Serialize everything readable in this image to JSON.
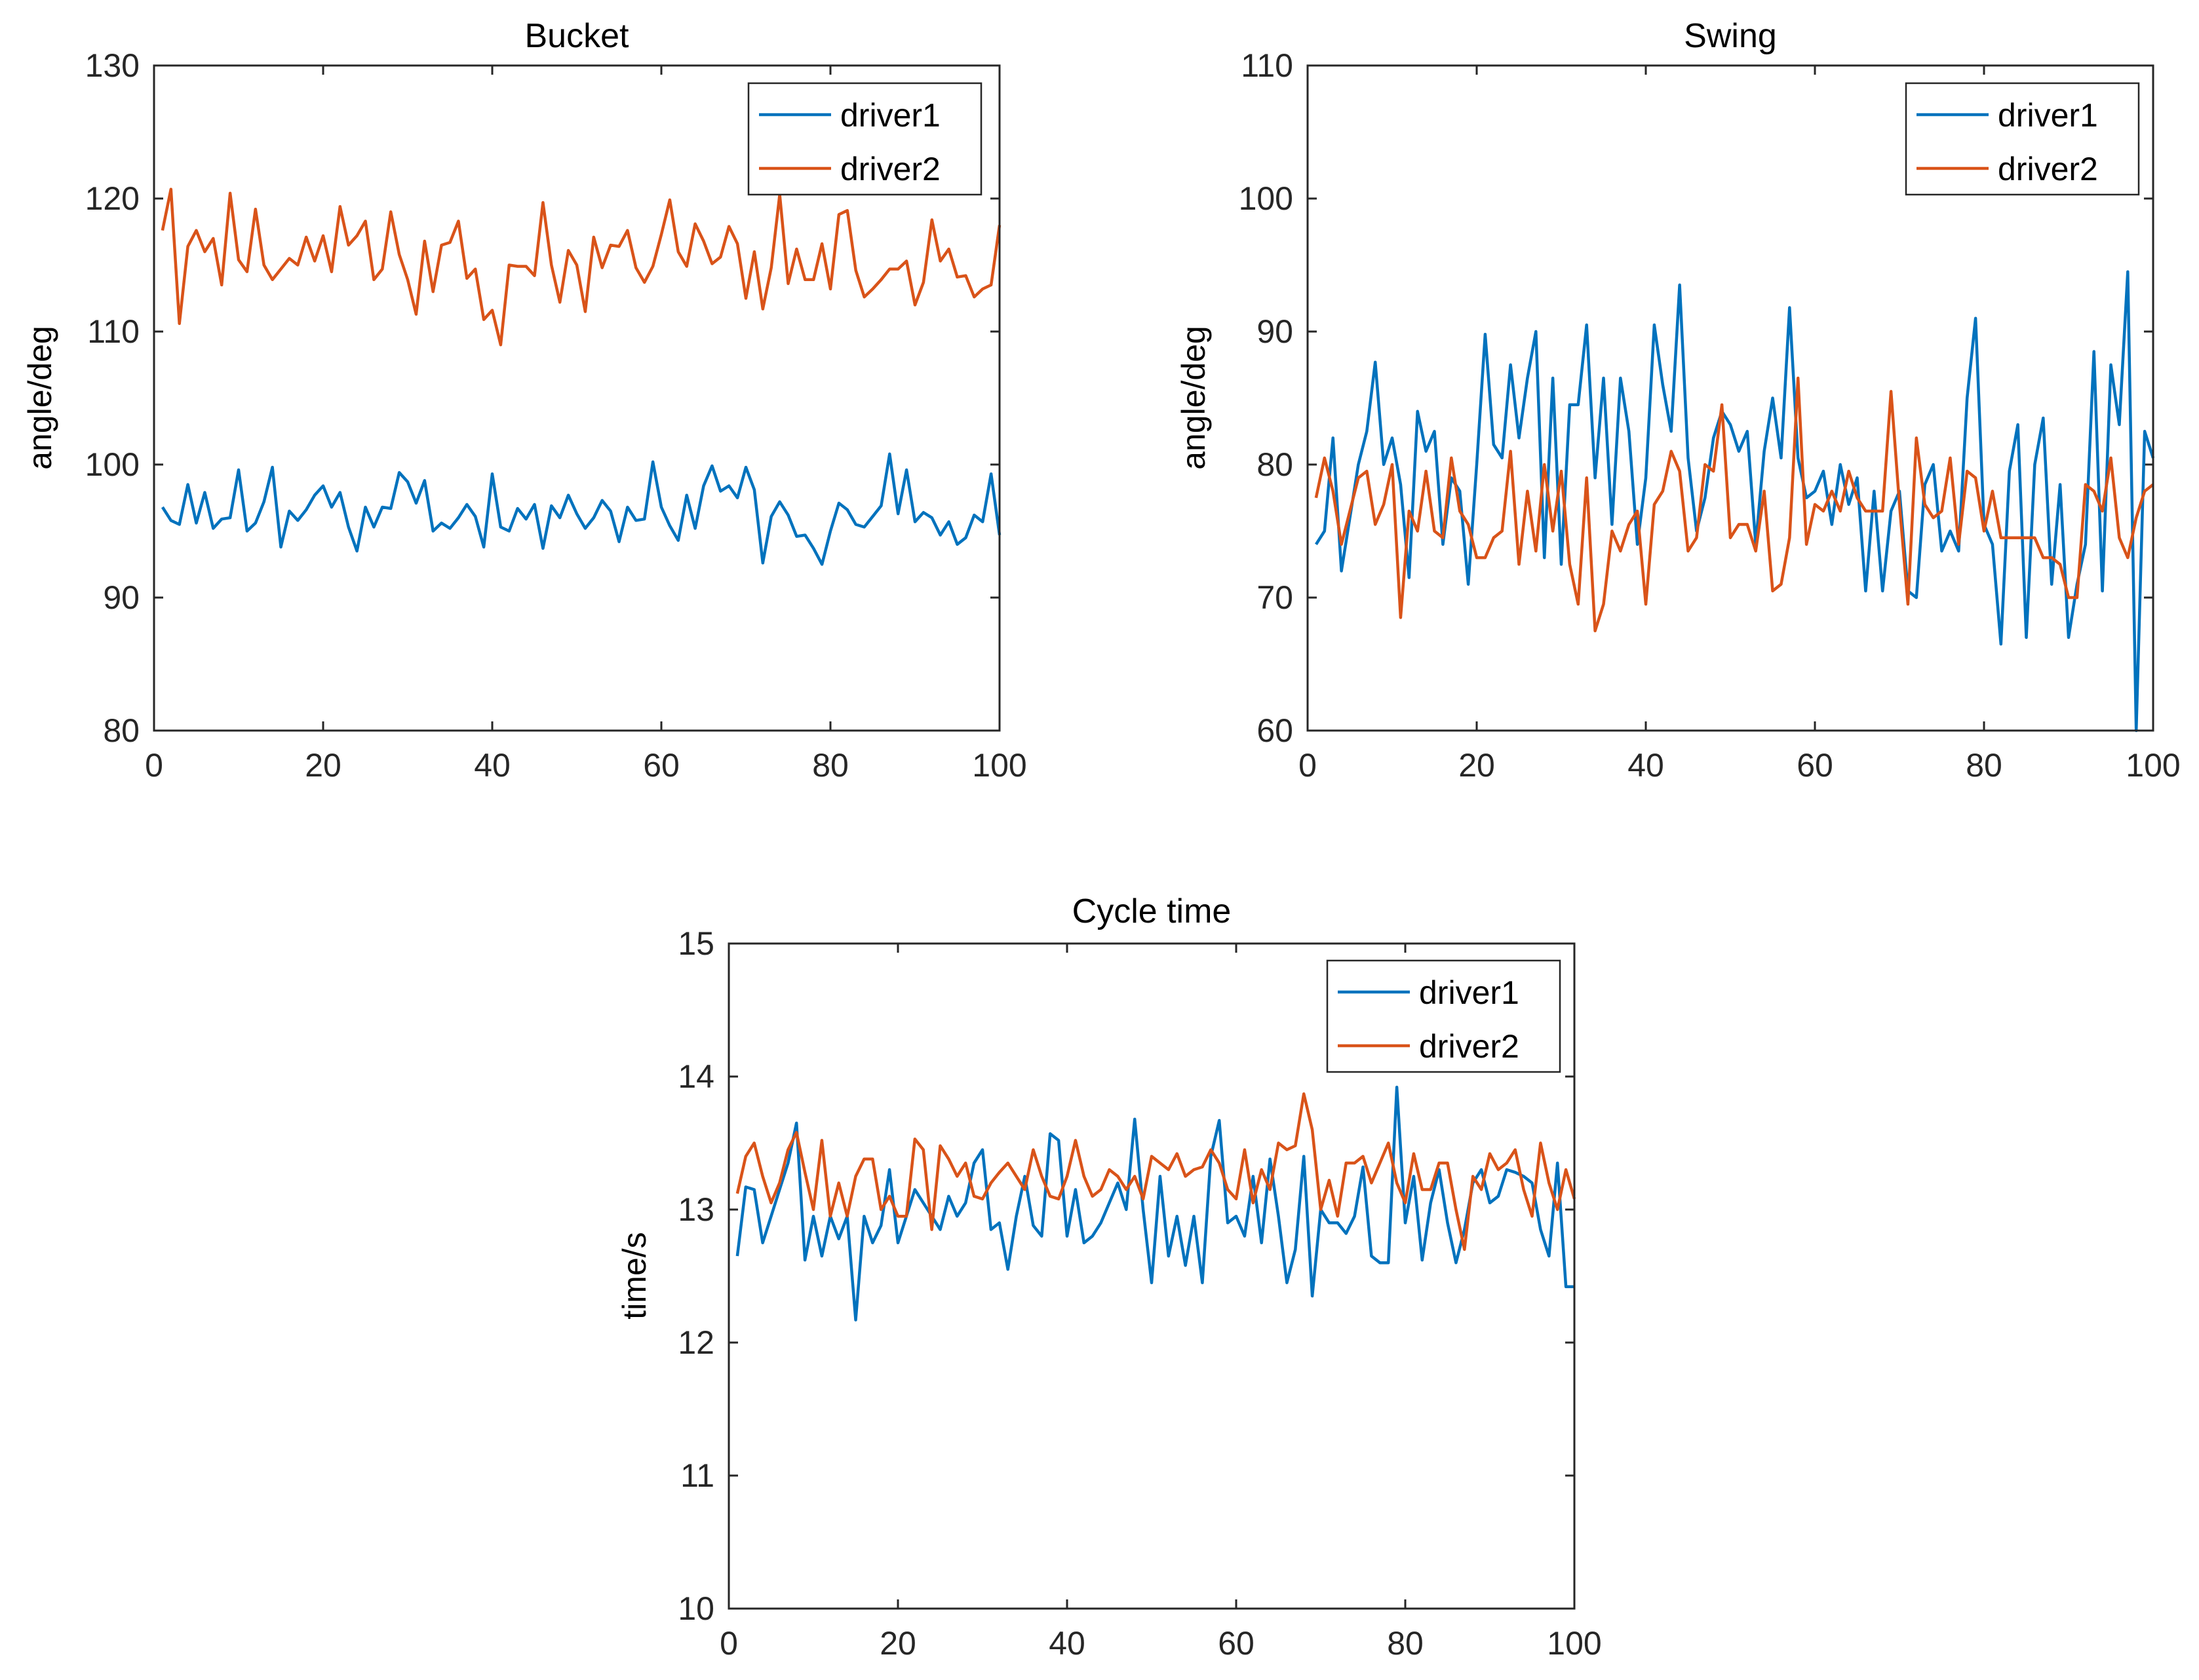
{
  "chart_data": [
    {
      "type": "line",
      "title": "Bucket",
      "xlabel": "",
      "ylabel": "angle/deg",
      "xlim": [
        0,
        100
      ],
      "ylim": [
        80,
        130
      ],
      "xticks": [
        "0",
        "20",
        "40",
        "60",
        "80",
        "100"
      ],
      "yticks": [
        "80",
        "90",
        "100",
        "110",
        "120",
        "130"
      ],
      "legend_position": "top-right",
      "x_start": 1,
      "series": [
        {
          "name": "driver1",
          "color": "#0072BD",
          "values": [
            96.8,
            95.8,
            95.5,
            98.5,
            95.6,
            97.9,
            95.2,
            95.9,
            96.0,
            99.6,
            95.0,
            95.6,
            97.2,
            99.8,
            93.8,
            96.5,
            95.8,
            96.6,
            97.7,
            98.4,
            96.8,
            97.9,
            95.3,
            93.5,
            96.8,
            95.3,
            96.8,
            96.7,
            99.4,
            98.7,
            97.1,
            98.8,
            95.0,
            95.6,
            95.2,
            96.0,
            97.0,
            96.1,
            93.8,
            99.3,
            95.3,
            95.0,
            96.7,
            95.9,
            97.0,
            93.7,
            96.9,
            96.0,
            97.7,
            96.3,
            95.2,
            96.0,
            97.3,
            96.5,
            94.2,
            96.8,
            95.8,
            95.9,
            100.2,
            96.8,
            95.4,
            94.3,
            97.7,
            95.2,
            98.4,
            99.9,
            98.0,
            98.4,
            97.5,
            99.8,
            98.1,
            92.6,
            96.1,
            97.2,
            96.2,
            94.6,
            94.7,
            93.7,
            92.5,
            95.0,
            97.1,
            96.6,
            95.5,
            95.3,
            96.1,
            96.9,
            100.8,
            96.3,
            99.6,
            95.7,
            96.4,
            96.0,
            94.7,
            95.7,
            94.0,
            94.5,
            96.2,
            95.7,
            99.3,
            94.7
          ]
        },
        {
          "name": "driver2",
          "color": "#D95319",
          "values": [
            117.6,
            120.7,
            110.6,
            116.4,
            117.6,
            116.0,
            117.0,
            113.5,
            120.4,
            115.4,
            114.5,
            119.2,
            115.0,
            113.9,
            114.7,
            115.5,
            115.0,
            117.1,
            115.3,
            117.2,
            114.5,
            119.4,
            116.5,
            117.2,
            118.3,
            113.9,
            114.7,
            119.0,
            115.8,
            113.9,
            111.3,
            116.8,
            113.0,
            116.5,
            116.7,
            118.3,
            114.0,
            114.7,
            110.9,
            111.6,
            109.0,
            115.0,
            114.9,
            114.9,
            114.2,
            119.7,
            115.0,
            112.2,
            116.1,
            115.0,
            111.5,
            117.1,
            114.8,
            116.5,
            116.4,
            117.6,
            114.8,
            113.7,
            114.9,
            117.3,
            119.9,
            116.0,
            114.9,
            118.1,
            116.8,
            115.1,
            115.6,
            117.9,
            116.6,
            112.5,
            116.0,
            111.7,
            114.8,
            120.3,
            113.6,
            116.2,
            113.9,
            113.9,
            116.6,
            113.2,
            118.8,
            119.1,
            114.6,
            112.6,
            113.2,
            113.9,
            114.7,
            114.7,
            115.3,
            112.0,
            113.7,
            118.4,
            115.3,
            116.2,
            114.1,
            114.2,
            112.6,
            113.2,
            113.5,
            118.0
          ]
        }
      ]
    },
    {
      "type": "line",
      "title": "Swing",
      "xlabel": "",
      "ylabel": "angle/deg",
      "xlim": [
        0,
        100
      ],
      "ylim": [
        60,
        110
      ],
      "xticks": [
        "0",
        "20",
        "40",
        "60",
        "80",
        "100"
      ],
      "yticks": [
        "60",
        "70",
        "80",
        "90",
        "100",
        "110"
      ],
      "legend_position": "top-right",
      "x_start": 1,
      "series": [
        {
          "name": "driver1",
          "color": "#0072BD",
          "values": [
            74.0,
            75.0,
            82.0,
            72.0,
            76.0,
            80.0,
            82.5,
            87.7,
            80.0,
            82.0,
            78.5,
            71.5,
            84.0,
            81.0,
            82.5,
            74.0,
            79.0,
            78.0,
            71.0,
            80.0,
            89.8,
            81.5,
            80.5,
            87.5,
            82.0,
            86.5,
            90.0,
            73.0,
            86.5,
            72.5,
            84.5,
            84.5,
            90.5,
            79.0,
            86.5,
            75.5,
            86.5,
            82.5,
            74.0,
            79.0,
            90.5,
            86.0,
            82.5,
            93.5,
            80.5,
            75.0,
            77.5,
            82.0,
            84.0,
            83.0,
            81.0,
            82.5,
            74.0,
            81.0,
            85.0,
            80.5,
            91.8,
            80.5,
            77.5,
            78.0,
            79.5,
            75.5,
            80.0,
            77.0,
            79.0,
            70.5,
            78.0,
            70.5,
            76.5,
            78.0,
            70.5,
            70.0,
            78.5,
            80.0,
            73.5,
            75.0,
            73.5,
            85.0,
            91.0,
            75.5,
            74.0,
            66.5,
            79.5,
            83.0,
            67.0,
            80.0,
            83.5,
            71.0,
            78.5,
            67.0,
            71.0,
            74.0,
            88.5,
            70.5,
            87.5,
            83.0,
            94.5,
            59.5,
            82.5,
            80.5
          ]
        },
        {
          "name": "driver2",
          "color": "#D95319",
          "values": [
            77.5,
            80.5,
            78.0,
            74.0,
            76.5,
            79.0,
            79.5,
            75.5,
            77.0,
            80.0,
            68.5,
            76.5,
            75.0,
            79.5,
            75.0,
            74.5,
            80.5,
            76.5,
            75.5,
            73.0,
            73.0,
            74.5,
            75.0,
            81.0,
            72.5,
            78.0,
            73.5,
            80.0,
            75.0,
            79.5,
            72.5,
            69.5,
            79.0,
            67.5,
            69.5,
            75.0,
            73.5,
            75.5,
            76.5,
            69.5,
            77.0,
            78.0,
            81.0,
            79.5,
            73.5,
            74.5,
            80.0,
            79.5,
            84.5,
            74.5,
            75.5,
            75.5,
            73.5,
            78.0,
            70.5,
            71.0,
            74.5,
            86.5,
            74.0,
            77.0,
            76.5,
            78.0,
            76.5,
            79.5,
            77.5,
            76.5,
            76.5,
            76.5,
            85.5,
            77.0,
            69.5,
            82.0,
            77.0,
            76.0,
            76.5,
            80.5,
            74.0,
            79.5,
            79.0,
            75.0,
            78.0,
            74.5,
            74.5,
            74.5,
            74.5,
            74.5,
            73.0,
            73.0,
            72.5,
            70.0,
            70.0,
            78.5,
            78.0,
            76.5,
            80.5,
            74.5,
            73.0,
            76.0,
            78.0,
            78.5
          ]
        }
      ]
    },
    {
      "type": "line",
      "title": "Cycle time",
      "xlabel": "",
      "ylabel": "time/s",
      "xlim": [
        0,
        100
      ],
      "ylim": [
        10,
        15
      ],
      "xticks": [
        "0",
        "20",
        "40",
        "60",
        "80",
        "100"
      ],
      "yticks": [
        "10",
        "11",
        "12",
        "13",
        "14",
        "15"
      ],
      "legend_position": "top-right",
      "x_start": 1,
      "series": [
        {
          "name": "driver1",
          "color": "#0072BD",
          "values": [
            12.65,
            13.17,
            13.15,
            12.75,
            12.95,
            13.15,
            13.35,
            13.65,
            12.62,
            12.95,
            12.65,
            12.95,
            12.78,
            12.95,
            12.17,
            12.95,
            12.75,
            12.88,
            13.3,
            12.75,
            12.95,
            13.15,
            13.05,
            12.95,
            12.85,
            13.1,
            12.95,
            13.05,
            13.35,
            13.45,
            12.85,
            12.9,
            12.55,
            12.95,
            13.25,
            12.88,
            12.8,
            13.57,
            13.52,
            12.8,
            13.15,
            12.75,
            12.8,
            12.9,
            13.05,
            13.2,
            13.0,
            13.68,
            13.0,
            12.45,
            13.25,
            12.65,
            12.95,
            12.58,
            12.95,
            12.45,
            13.4,
            13.67,
            12.9,
            12.95,
            12.8,
            13.25,
            12.75,
            13.38,
            12.95,
            12.45,
            12.7,
            13.4,
            12.35,
            13.0,
            12.9,
            12.9,
            12.82,
            12.95,
            13.32,
            12.65,
            12.6,
            12.6,
            13.92,
            12.9,
            13.25,
            12.62,
            13.05,
            13.3,
            12.9,
            12.6,
            12.85,
            13.2,
            13.3,
            13.05,
            13.1,
            13.3,
            13.28,
            13.25,
            13.2,
            12.85,
            12.65,
            13.35,
            12.42,
            12.42
          ]
        },
        {
          "name": "driver2",
          "color": "#D95319",
          "values": [
            13.12,
            13.4,
            13.5,
            13.25,
            13.05,
            13.2,
            13.45,
            13.58,
            13.28,
            13.0,
            13.52,
            12.95,
            13.2,
            12.95,
            13.25,
            13.38,
            13.38,
            13.0,
            13.1,
            12.95,
            12.95,
            13.53,
            13.45,
            12.85,
            13.48,
            13.38,
            13.25,
            13.35,
            13.1,
            13.08,
            13.2,
            13.28,
            13.35,
            13.25,
            13.15,
            13.45,
            13.25,
            13.1,
            13.08,
            13.25,
            13.52,
            13.25,
            13.1,
            13.15,
            13.3,
            13.25,
            13.15,
            13.25,
            13.08,
            13.4,
            13.35,
            13.3,
            13.42,
            13.25,
            13.3,
            13.32,
            13.45,
            13.35,
            13.15,
            13.08,
            13.45,
            13.05,
            13.3,
            13.15,
            13.5,
            13.45,
            13.48,
            13.87,
            13.6,
            13.0,
            13.22,
            12.95,
            13.35,
            13.35,
            13.4,
            13.2,
            13.35,
            13.5,
            13.2,
            13.05,
            13.42,
            13.15,
            13.15,
            13.35,
            13.35,
            13.0,
            12.7,
            13.25,
            13.15,
            13.42,
            13.3,
            13.35,
            13.45,
            13.15,
            12.95,
            13.5,
            13.2,
            13.0,
            13.3,
            13.08
          ]
        }
      ]
    }
  ]
}
